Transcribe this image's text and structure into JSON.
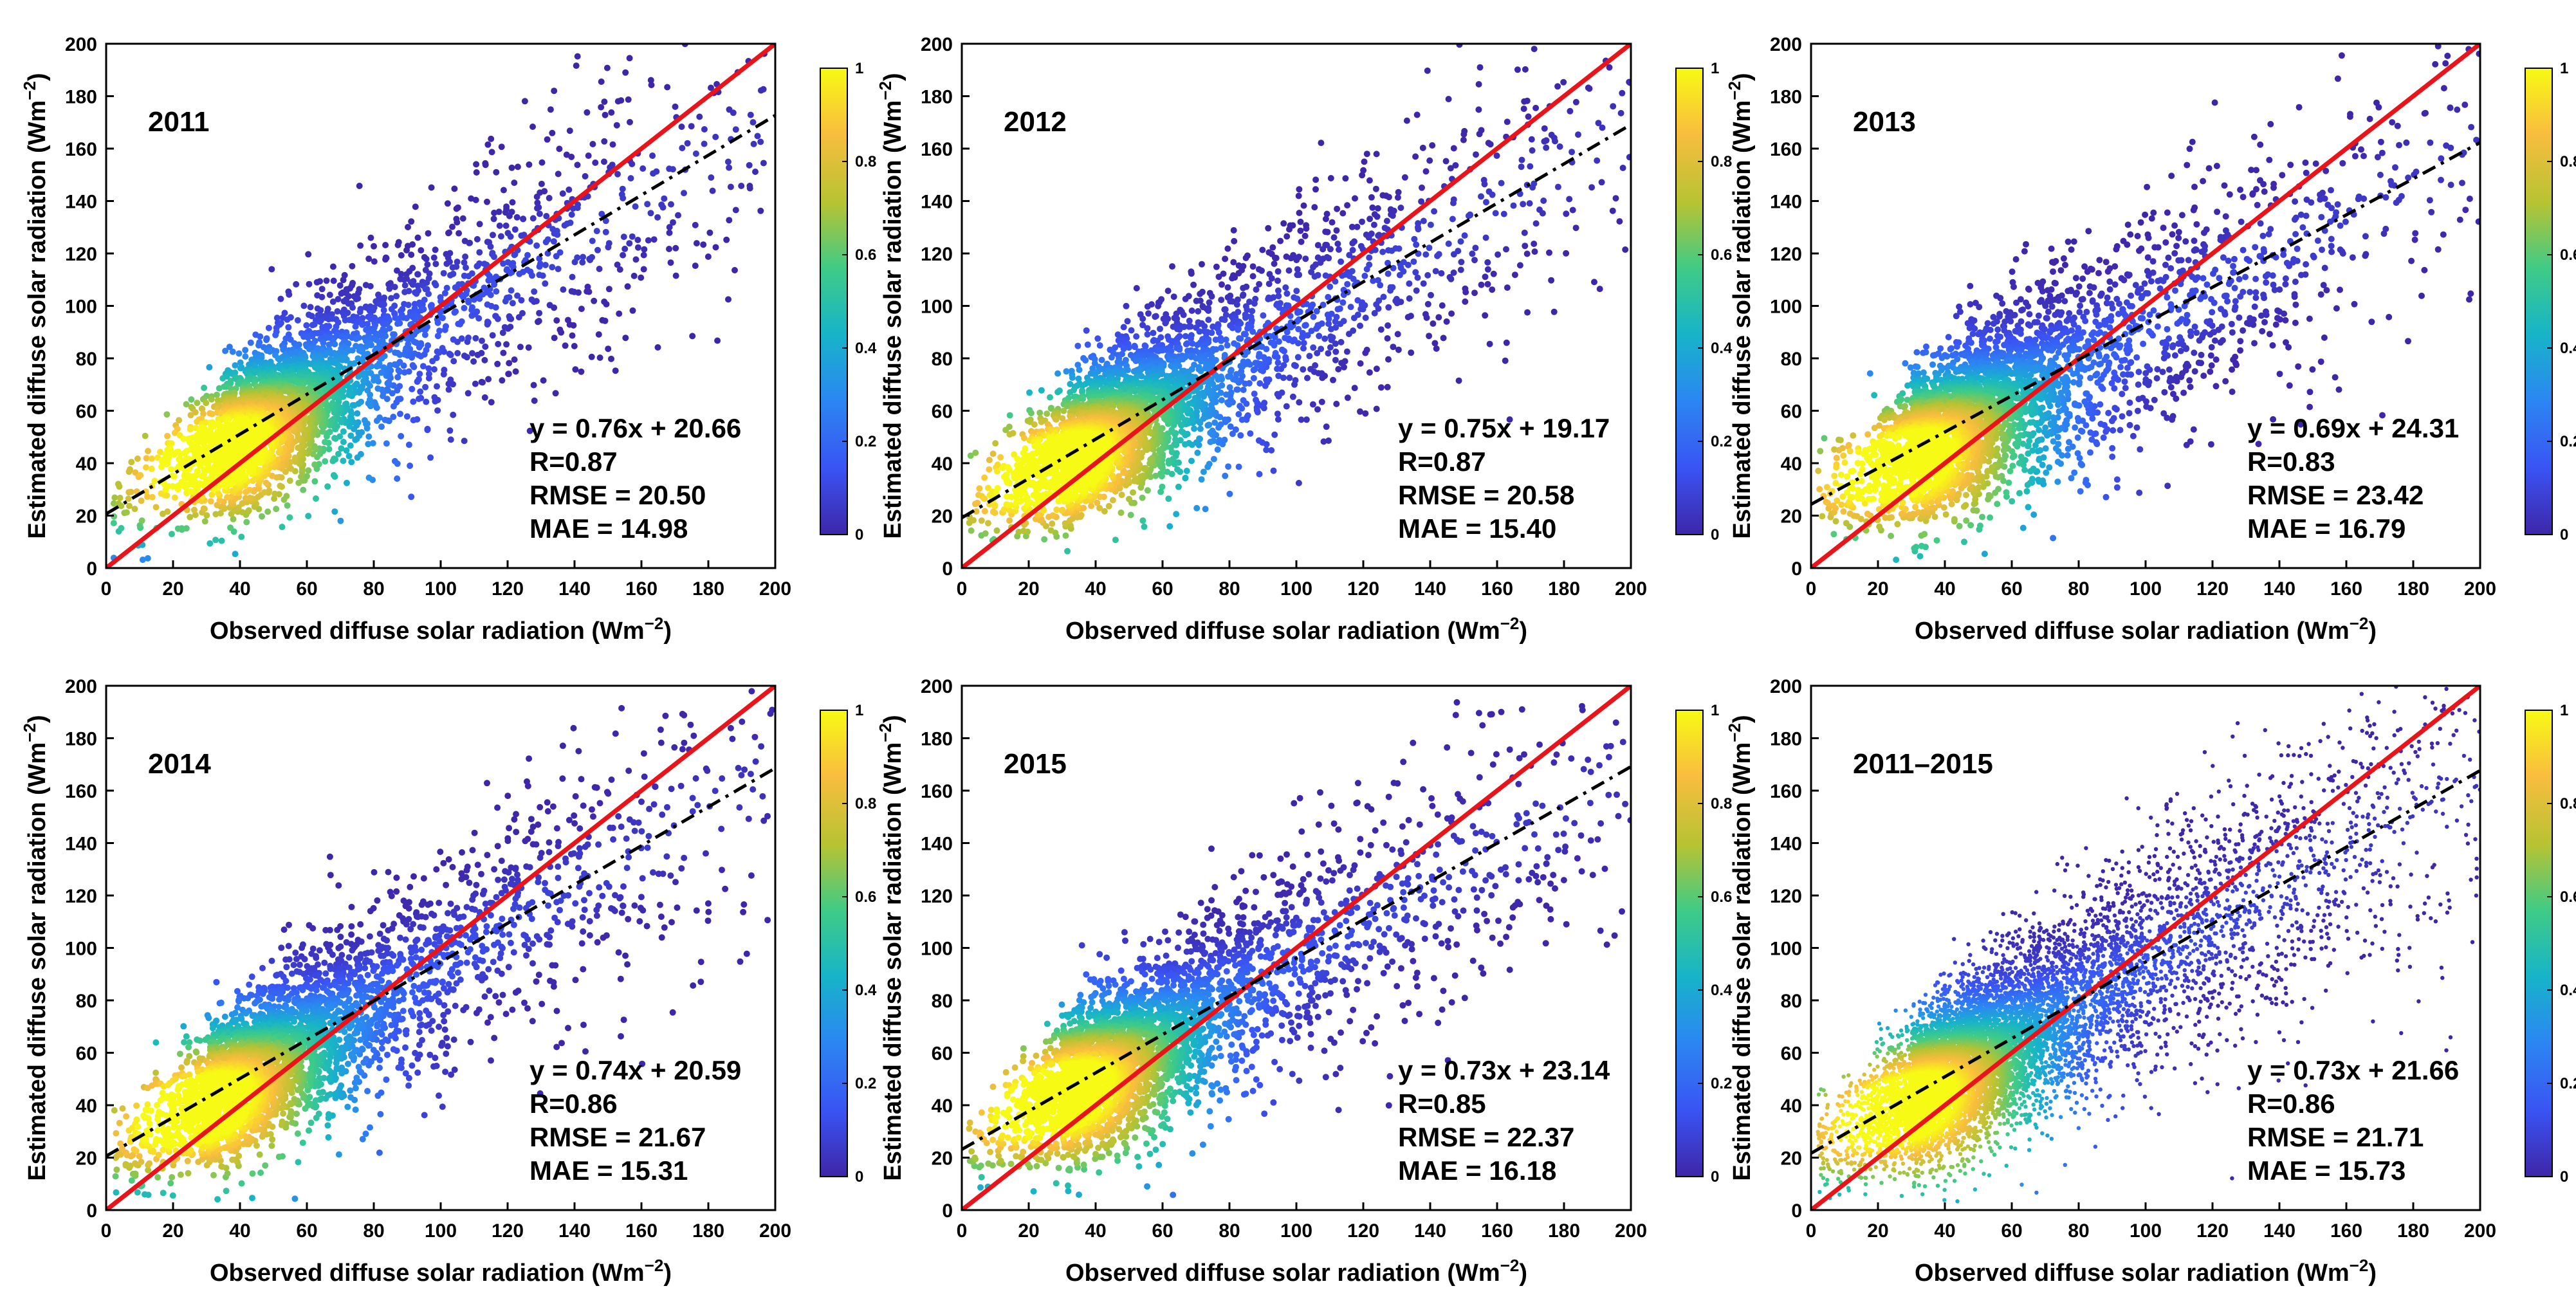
{
  "figure": {
    "axis_ticks": [
      "0",
      "20",
      "40",
      "60",
      "80",
      "100",
      "120",
      "140",
      "160",
      "180",
      "200"
    ],
    "colorbar_ticks": [
      "0",
      "0.2",
      "0.4",
      "0.6",
      "0.8",
      "1"
    ],
    "colors": {
      "one_to_one_line": "#e8141a",
      "fit_line": "#000000",
      "colormap": [
        "#3e26a8",
        "#3a53f3",
        "#2b87f2",
        "#17b4c8",
        "#3fcb87",
        "#b6c333",
        "#f9bd3e",
        "#f7fa14"
      ]
    }
  },
  "chart_data": [
    {
      "type": "scatter",
      "title": "2011",
      "xlabel": "Observed diffuse solar radiation (Wm−2)",
      "ylabel": "Estimated diffuse solar radiation (Wm−2)",
      "xlim": [
        0,
        200
      ],
      "ylim": [
        0,
        200
      ],
      "fit": {
        "slope": 0.76,
        "intercept": 20.66
      },
      "stats": {
        "equation": "y = 0.76x + 20.66",
        "r": "R=0.87",
        "rmse": "RMSE = 20.50",
        "mae": "MAE = 14.98"
      },
      "series_note": "density-colored point cloud; densest near (35,40)",
      "density_center": [
        35,
        40
      ],
      "spread": 0.55,
      "colorbar_range": [
        0,
        1
      ]
    },
    {
      "type": "scatter",
      "title": "2012",
      "xlabel": "Observed diffuse solar radiation (Wm−2)",
      "ylabel": "Estimated diffuse solar radiation (Wm−2)",
      "xlim": [
        0,
        200
      ],
      "ylim": [
        0,
        200
      ],
      "fit": {
        "slope": 0.75,
        "intercept": 19.17
      },
      "stats": {
        "equation": "y = 0.75x + 19.17",
        "r": "R=0.87",
        "rmse": "RMSE = 20.58",
        "mae": "MAE = 15.40"
      },
      "series_note": "density-colored point cloud; densest near (30,35)",
      "density_center": [
        30,
        35
      ],
      "spread": 0.55,
      "colorbar_range": [
        0,
        1
      ]
    },
    {
      "type": "scatter",
      "title": "2013",
      "xlabel": "Observed diffuse solar radiation (Wm−2)",
      "ylabel": "Estimated diffuse solar radiation (Wm−2)",
      "xlim": [
        0,
        200
      ],
      "ylim": [
        0,
        200
      ],
      "fit": {
        "slope": 0.69,
        "intercept": 24.31
      },
      "stats": {
        "equation": "y = 0.69x + 24.31",
        "r": "R=0.83",
        "rmse": "RMSE = 23.42",
        "mae": "MAE = 16.79"
      },
      "series_note": "density-colored point cloud; densest near (30,35)",
      "density_center": [
        30,
        35
      ],
      "spread": 0.6,
      "colorbar_range": [
        0,
        1
      ]
    },
    {
      "type": "scatter",
      "title": "2014",
      "xlabel": "Observed diffuse solar radiation (Wm−2)",
      "ylabel": "Estimated diffuse solar radiation (Wm−2)",
      "xlim": [
        0,
        200
      ],
      "ylim": [
        0,
        200
      ],
      "fit": {
        "slope": 0.74,
        "intercept": 20.59
      },
      "stats": {
        "equation": "y = 0.74x + 20.59",
        "r": "R=0.86",
        "rmse": "RMSE = 21.67",
        "mae": "MAE = 15.31"
      },
      "series_note": "density-colored point cloud; densest near (30,35)",
      "density_center": [
        30,
        35
      ],
      "spread": 0.55,
      "colorbar_range": [
        0,
        1
      ]
    },
    {
      "type": "scatter",
      "title": "2015",
      "xlabel": "Observed diffuse solar radiation (Wm−2)",
      "ylabel": "Estimated diffuse solar radiation (Wm−2)",
      "xlim": [
        0,
        200
      ],
      "ylim": [
        0,
        200
      ],
      "fit": {
        "slope": 0.73,
        "intercept": 23.14
      },
      "stats": {
        "equation": "y = 0.73x + 23.14",
        "r": "R=0.85",
        "rmse": "RMSE = 22.37",
        "mae": "MAE = 16.18"
      },
      "series_note": "density-colored point cloud; densest near (30,40)",
      "density_center": [
        30,
        40
      ],
      "spread": 0.58,
      "colorbar_range": [
        0,
        1
      ]
    },
    {
      "type": "scatter",
      "title": "2011–2015",
      "xlabel": "Observed diffuse solar radiation (Wm−2)",
      "ylabel": "Estimated diffuse solar radiation (Wm−2)",
      "xlim": [
        0,
        200
      ],
      "ylim": [
        0,
        200
      ],
      "fit": {
        "slope": 0.73,
        "intercept": 21.66
      },
      "stats": {
        "equation": "y = 0.73x + 21.66",
        "r": "R=0.86",
        "rmse": "RMSE = 21.71",
        "mae": "MAE = 15.73"
      },
      "series_note": "dense density-colored point cloud; densest near (30,35)",
      "density_center": [
        30,
        35
      ],
      "spread": 0.57,
      "colorbar_range": [
        0,
        1
      ]
    }
  ]
}
